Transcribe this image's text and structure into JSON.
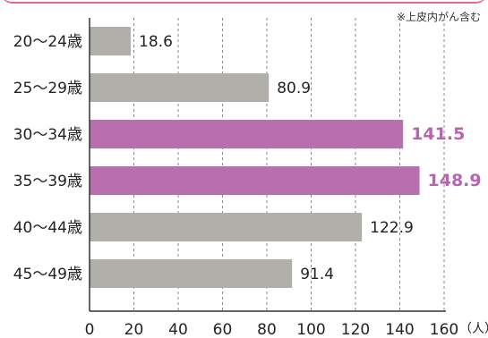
{
  "note": "※上皮内がん含む",
  "colors": {
    "normal": "#b0afaa",
    "highlight": "#b86fae",
    "highlight_text": "#b865ad",
    "frame": "#e3679a"
  },
  "chart_data": {
    "type": "bar",
    "orientation": "horizontal",
    "categories": [
      "20〜24歳",
      "25〜29歳",
      "30〜34歳",
      "35〜39歳",
      "40〜44歳",
      "45〜49歳"
    ],
    "values": [
      18.6,
      80.9,
      141.5,
      148.9,
      122.9,
      91.4
    ],
    "value_labels": [
      "18.6",
      "80.9",
      "141.5",
      "148.9",
      "122.9",
      "91.4"
    ],
    "highlighted": [
      false,
      false,
      true,
      true,
      false,
      false
    ],
    "xlim": [
      0,
      160
    ],
    "xticks": [
      "0",
      "20",
      "40",
      "60",
      "80",
      "100",
      "120",
      "140",
      "160"
    ],
    "xunit": "（人）",
    "grid": "vertical dashed"
  }
}
